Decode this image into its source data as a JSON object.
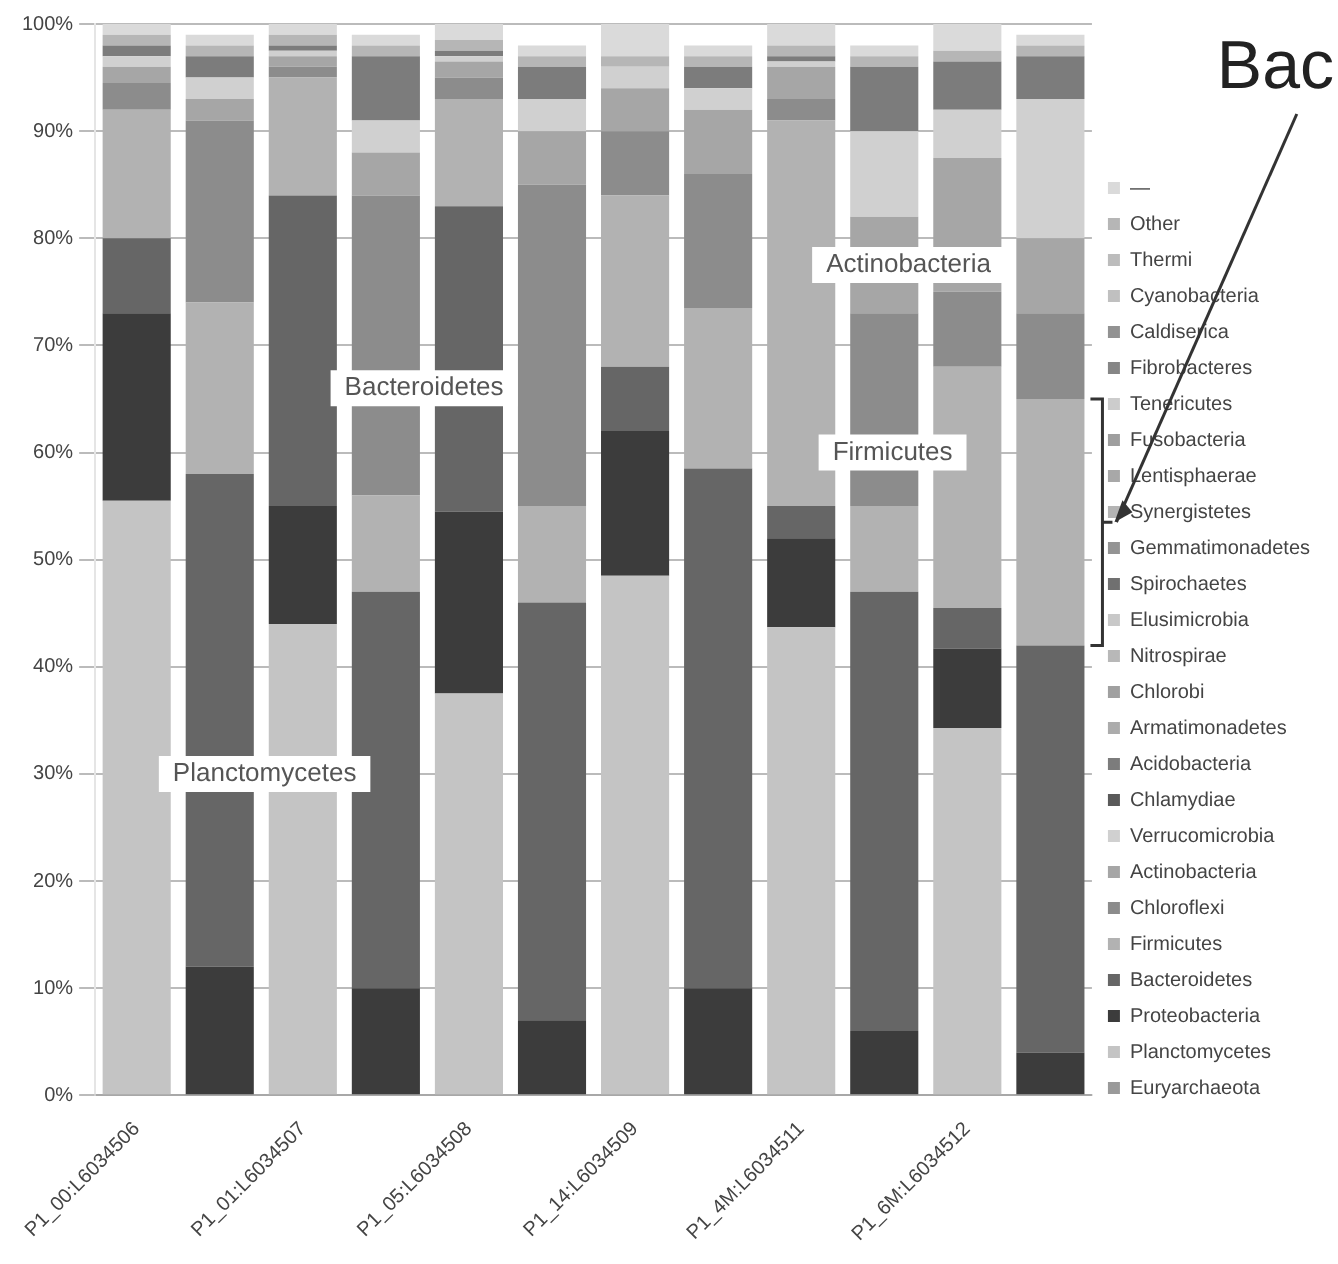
{
  "chart_data": {
    "type": "bar",
    "stacked": true,
    "grid": "y",
    "legend": "right",
    "categories": [
      "P1_00:L6034506",
      null,
      "P1_01:L6034507",
      null,
      "P1_05:L6034508",
      null,
      "P1_14:L6034509",
      null,
      "P1_4M:L6034511",
      null,
      "P1_6M:L6034512",
      null
    ],
    "ylim": [
      0,
      100
    ],
    "yticks": [
      {
        "value": 0,
        "label": "0%"
      },
      {
        "value": 10,
        "label": "10%"
      },
      {
        "value": 20,
        "label": "20%"
      },
      {
        "value": 30,
        "label": "30%"
      },
      {
        "value": 40,
        "label": "40%"
      },
      {
        "value": 50,
        "label": "50%"
      },
      {
        "value": 60,
        "label": "60%"
      },
      {
        "value": 70,
        "label": "70%"
      },
      {
        "value": 80,
        "label": "80%"
      },
      {
        "value": 90,
        "label": "90%"
      },
      {
        "value": 100,
        "label": "100%"
      }
    ],
    "series": [
      {
        "name": "Euryarchaeota",
        "color": "#9a9a9a",
        "values": [
          0,
          0,
          0,
          0,
          0,
          0,
          0,
          0,
          0,
          0,
          0,
          0
        ]
      },
      {
        "name": "Planctomycetes",
        "color": "#c4c4c4",
        "values": [
          55.5,
          0,
          44,
          0,
          37.5,
          0,
          48.5,
          0,
          43.7,
          0,
          34.3,
          0
        ]
      },
      {
        "name": "Proteobacteria",
        "color": "#3c3c3c",
        "values": [
          17.5,
          12,
          11,
          10,
          17,
          7,
          13.5,
          10,
          8.3,
          6,
          7.4,
          4
        ]
      },
      {
        "name": "Bacteroidetes",
        "color": "#666666",
        "values": [
          7,
          46,
          29,
          37,
          28.5,
          39,
          6,
          48.5,
          3,
          41,
          3.8,
          38
        ]
      },
      {
        "name": "Firmicutes",
        "color": "#b2b2b2",
        "values": [
          12,
          16,
          11,
          9,
          10,
          9,
          16,
          15,
          36,
          8,
          22.5,
          23
        ]
      },
      {
        "name": "Chloroflexi",
        "color": "#8c8c8c",
        "values": [
          2.5,
          17,
          1,
          28,
          2,
          30,
          6,
          12.5,
          2,
          18,
          7,
          8
        ]
      },
      {
        "name": "Actinobacteria",
        "color": "#a6a6a6",
        "values": [
          1.5,
          2,
          1,
          4,
          1.5,
          5,
          4,
          6,
          3,
          9,
          12.5,
          7
        ]
      },
      {
        "name": "Verrucomicrobia",
        "color": "#d0d0d0",
        "values": [
          1,
          2,
          0.5,
          3,
          0.5,
          3,
          2,
          2,
          0.5,
          8,
          4.5,
          13
        ]
      },
      {
        "name": "Chlamydiae",
        "color": "#5a5a5a",
        "values": [
          0,
          0,
          0,
          0,
          0,
          0,
          0,
          0,
          0,
          0,
          0,
          0
        ]
      },
      {
        "name": "Acidobacteria",
        "color": "#7c7c7c",
        "values": [
          1,
          2,
          0.5,
          6,
          0.5,
          3,
          0,
          2,
          0.5,
          6,
          4.5,
          4
        ]
      },
      {
        "name": "Armatimonadetes",
        "color": "#acacac",
        "values": [
          0,
          0,
          0,
          0,
          0,
          0,
          0,
          0,
          0,
          0,
          0,
          0
        ]
      },
      {
        "name": "Chlorobi",
        "color": "#a0a0a0",
        "values": [
          0,
          0,
          0,
          0,
          0,
          0,
          0,
          0,
          0,
          0,
          0,
          0
        ]
      },
      {
        "name": "Nitrospirae",
        "color": "#b8b8b8",
        "values": [
          0,
          0,
          0,
          0,
          0,
          0,
          0,
          0,
          0,
          0,
          0,
          0
        ]
      },
      {
        "name": "Elusimicrobia",
        "color": "#c8c8c8",
        "values": [
          0,
          0,
          0,
          0,
          0,
          0,
          0,
          0,
          0,
          0,
          0,
          0
        ]
      },
      {
        "name": "Spirochaetes",
        "color": "#707070",
        "values": [
          0,
          0,
          0,
          0,
          0,
          0,
          0,
          0,
          0,
          0,
          0,
          0
        ]
      },
      {
        "name": "Gemmatimonadetes",
        "color": "#949494",
        "values": [
          0,
          0,
          0,
          0,
          0,
          0,
          0,
          0,
          0,
          0,
          0,
          0
        ]
      },
      {
        "name": "Synergistetes",
        "color": "#b4b4b4",
        "values": [
          0,
          0,
          0,
          0,
          0,
          0,
          0,
          0,
          0,
          0,
          0,
          0
        ]
      },
      {
        "name": "Lentisphaerae",
        "color": "#a8a8a8",
        "values": [
          0,
          0,
          0,
          0,
          0,
          0,
          0,
          0,
          0,
          0,
          0,
          0
        ]
      },
      {
        "name": "Fusobacteria",
        "color": "#9e9e9e",
        "values": [
          0,
          0,
          0,
          0,
          0,
          0,
          0,
          0,
          0,
          0,
          0,
          0
        ]
      },
      {
        "name": "Tenericutes",
        "color": "#cccccc",
        "values": [
          0,
          0,
          0,
          0,
          0,
          0,
          0,
          0,
          0,
          0,
          0,
          0
        ]
      },
      {
        "name": "Fibrobacteres",
        "color": "#868686",
        "values": [
          0,
          0,
          0,
          0,
          0,
          0,
          0,
          0,
          0,
          0,
          0,
          0
        ]
      },
      {
        "name": "Caldiserica",
        "color": "#929292",
        "values": [
          0,
          0,
          0,
          0,
          0,
          0,
          0,
          0,
          0,
          0,
          0,
          0
        ]
      },
      {
        "name": "Cyanobacteria",
        "color": "#c0c0c0",
        "values": [
          0,
          0,
          0,
          0,
          0,
          0,
          0,
          0,
          0,
          0,
          0,
          0
        ]
      },
      {
        "name": "Thermi",
        "color": "#bcbcbc",
        "values": [
          0,
          0,
          0,
          0,
          0,
          0,
          0,
          0,
          0,
          0,
          0,
          0
        ]
      },
      {
        "name": "Other",
        "color": "#b6b6b6",
        "values": [
          1,
          1,
          1,
          1,
          1,
          1,
          1,
          1,
          1,
          1,
          1,
          1
        ]
      },
      {
        "name": "—",
        "color": "#dadada",
        "values": [
          1,
          1,
          1,
          1,
          1.5,
          1,
          3,
          1,
          2,
          1,
          2.5,
          1
        ]
      }
    ],
    "annotations": [
      "Planctomycetes",
      "Bacteroidetes",
      "Firmicutes",
      "Actinobacteria",
      "Bac"
    ]
  }
}
